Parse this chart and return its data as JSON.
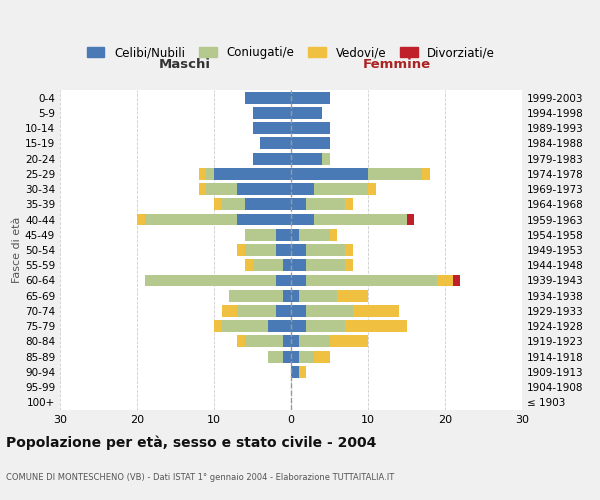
{
  "age_groups": [
    "100+",
    "95-99",
    "90-94",
    "85-89",
    "80-84",
    "75-79",
    "70-74",
    "65-69",
    "60-64",
    "55-59",
    "50-54",
    "45-49",
    "40-44",
    "35-39",
    "30-34",
    "25-29",
    "20-24",
    "15-19",
    "10-14",
    "5-9",
    "0-4"
  ],
  "birth_years": [
    "≤ 1903",
    "1904-1908",
    "1909-1913",
    "1914-1918",
    "1919-1923",
    "1924-1928",
    "1929-1933",
    "1934-1938",
    "1939-1943",
    "1944-1948",
    "1949-1953",
    "1954-1958",
    "1959-1963",
    "1964-1968",
    "1969-1973",
    "1974-1978",
    "1979-1983",
    "1984-1988",
    "1989-1993",
    "1994-1998",
    "1999-2003"
  ],
  "maschi": {
    "celibi": [
      0,
      0,
      0,
      1,
      1,
      3,
      2,
      1,
      2,
      1,
      2,
      2,
      7,
      6,
      7,
      10,
      5,
      4,
      5,
      5,
      6
    ],
    "coniugati": [
      0,
      0,
      0,
      2,
      5,
      6,
      5,
      7,
      17,
      4,
      4,
      4,
      12,
      3,
      4,
      1,
      0,
      0,
      0,
      0,
      0
    ],
    "vedovi": [
      0,
      0,
      0,
      0,
      1,
      1,
      2,
      0,
      0,
      1,
      1,
      0,
      1,
      1,
      1,
      1,
      0,
      0,
      0,
      0,
      0
    ],
    "divorziati": [
      0,
      0,
      0,
      0,
      0,
      0,
      0,
      0,
      0,
      0,
      0,
      0,
      0,
      0,
      0,
      0,
      0,
      0,
      0,
      0,
      0
    ]
  },
  "femmine": {
    "nubili": [
      0,
      0,
      1,
      1,
      1,
      2,
      2,
      1,
      2,
      2,
      2,
      1,
      3,
      2,
      3,
      10,
      4,
      5,
      5,
      4,
      5
    ],
    "coniugate": [
      0,
      0,
      0,
      2,
      4,
      5,
      6,
      5,
      17,
      5,
      5,
      4,
      12,
      5,
      7,
      7,
      1,
      0,
      0,
      0,
      0
    ],
    "vedove": [
      0,
      0,
      1,
      2,
      5,
      8,
      6,
      4,
      2,
      1,
      1,
      1,
      0,
      1,
      1,
      1,
      0,
      0,
      0,
      0,
      0
    ],
    "divorziate": [
      0,
      0,
      0,
      0,
      0,
      0,
      0,
      0,
      1,
      0,
      0,
      0,
      1,
      0,
      0,
      0,
      0,
      0,
      0,
      0,
      0
    ]
  },
  "colors": {
    "celibi": "#4a7ab5",
    "coniugati": "#b5c98e",
    "vedovi": "#f0c040",
    "divorziati": "#c0202a"
  },
  "legend_labels": [
    "Celibi/Nubili",
    "Coniugati/e",
    "Vedovi/e",
    "Divorziati/e"
  ],
  "title": "Popolazione per età, sesso e stato civile - 2004",
  "subtitle": "COMUNE DI MONTESCHENO (VB) - Dati ISTAT 1° gennaio 2004 - Elaborazione TUTTAITALIA.IT",
  "ylabel_left": "Fasce di età",
  "xlabel_left": "Maschi",
  "xlabel_right": "Femmine",
  "xlim": 30,
  "bg_color": "#f0f0f0",
  "plot_bg_color": "#ffffff",
  "grid_color": "#cccccc"
}
